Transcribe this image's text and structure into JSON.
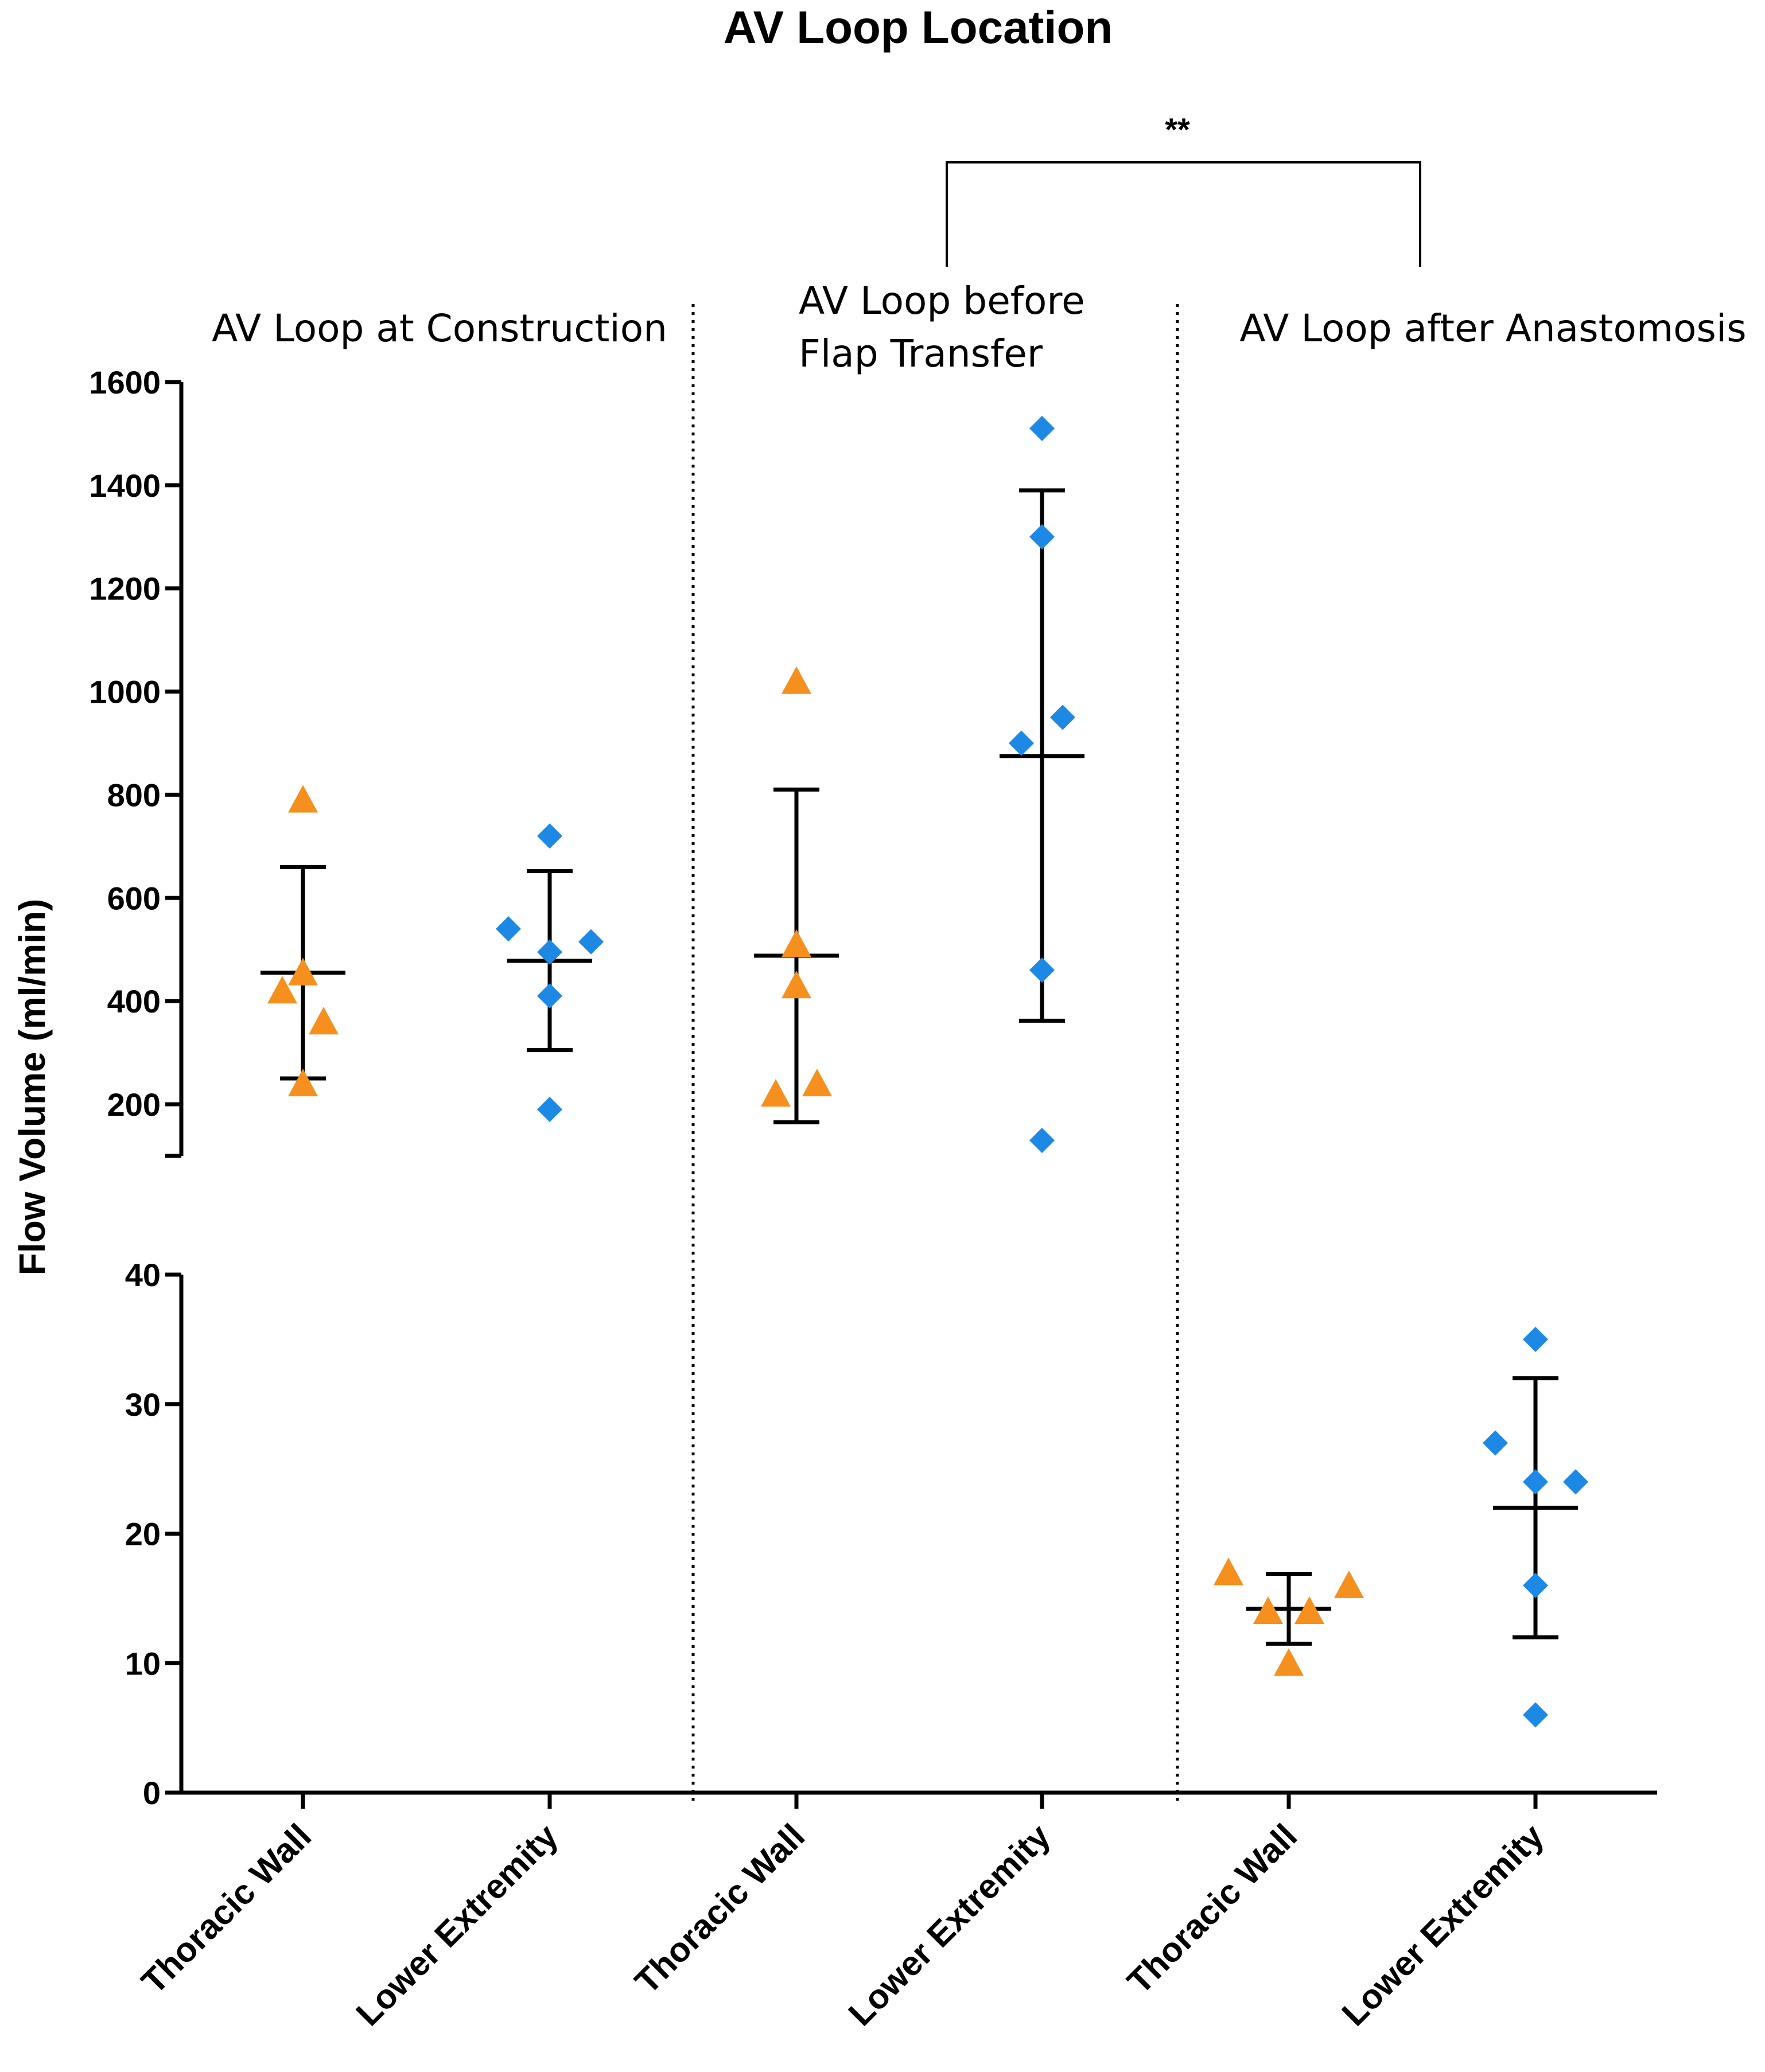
{
  "chart_data": {
    "type": "scatter",
    "title": "AV Loop Location",
    "ylabel": "Flow Volume (ml/min)",
    "xlabel": "",
    "y_axis_break": {
      "upper_segment": {
        "range": [
          100,
          1600
        ],
        "ticks": [
          200,
          400,
          600,
          800,
          1000,
          1200,
          1400,
          1600
        ]
      },
      "lower_segment": {
        "range": [
          0,
          40
        ],
        "ticks": [
          0,
          10,
          20,
          30,
          40
        ]
      }
    },
    "legend": "none",
    "significance": {
      "label": "**",
      "between": [
        "AV Loop before Flap Transfer / Lower Extremity",
        "AV Loop after Anastomosis / Lower Extremity"
      ]
    },
    "groups": [
      {
        "label": "AV Loop at Construction",
        "segment": "upper",
        "categories": [
          {
            "label": "Thoracic Wall",
            "marker": "triangle",
            "color": "#f5901f",
            "values": [
              790,
              455,
              420,
              360,
              240
            ],
            "mean": 455,
            "error_low": 250,
            "error_high": 660
          },
          {
            "label": "Lower Extremity",
            "marker": "diamond",
            "color": "#1e88e5",
            "values": [
              720,
              540,
              515,
              495,
              410,
              190
            ],
            "mean": 478,
            "error_low": 305,
            "error_high": 652
          }
        ]
      },
      {
        "label_lines": [
          "AV Loop before",
          "Flap Transfer"
        ],
        "segment": "upper",
        "categories": [
          {
            "label": "Thoracic Wall",
            "marker": "triangle",
            "color": "#f5901f",
            "values": [
              1020,
              510,
              430,
              240,
              220
            ],
            "mean": 488,
            "error_low": 165,
            "error_high": 810
          },
          {
            "label": "Lower Extremity",
            "marker": "diamond",
            "color": "#1e88e5",
            "values": [
              1510,
              1300,
              950,
              900,
              460,
              130
            ],
            "mean": 875,
            "error_low": 362,
            "error_high": 1390
          }
        ]
      },
      {
        "label": "AV Loop after Anastomosis",
        "segment": "lower",
        "categories": [
          {
            "label": "Thoracic Wall",
            "marker": "triangle",
            "color": "#f5901f",
            "values": [
              17,
              16,
              14,
              14,
              10
            ],
            "mean": 14.2,
            "error_low": 11.5,
            "error_high": 16.9
          },
          {
            "label": "Lower Extremity",
            "marker": "diamond",
            "color": "#1e88e5",
            "values": [
              35,
              27,
              24,
              24,
              16,
              6
            ],
            "mean": 22,
            "error_low": 12,
            "error_high": 32
          }
        ]
      }
    ]
  }
}
